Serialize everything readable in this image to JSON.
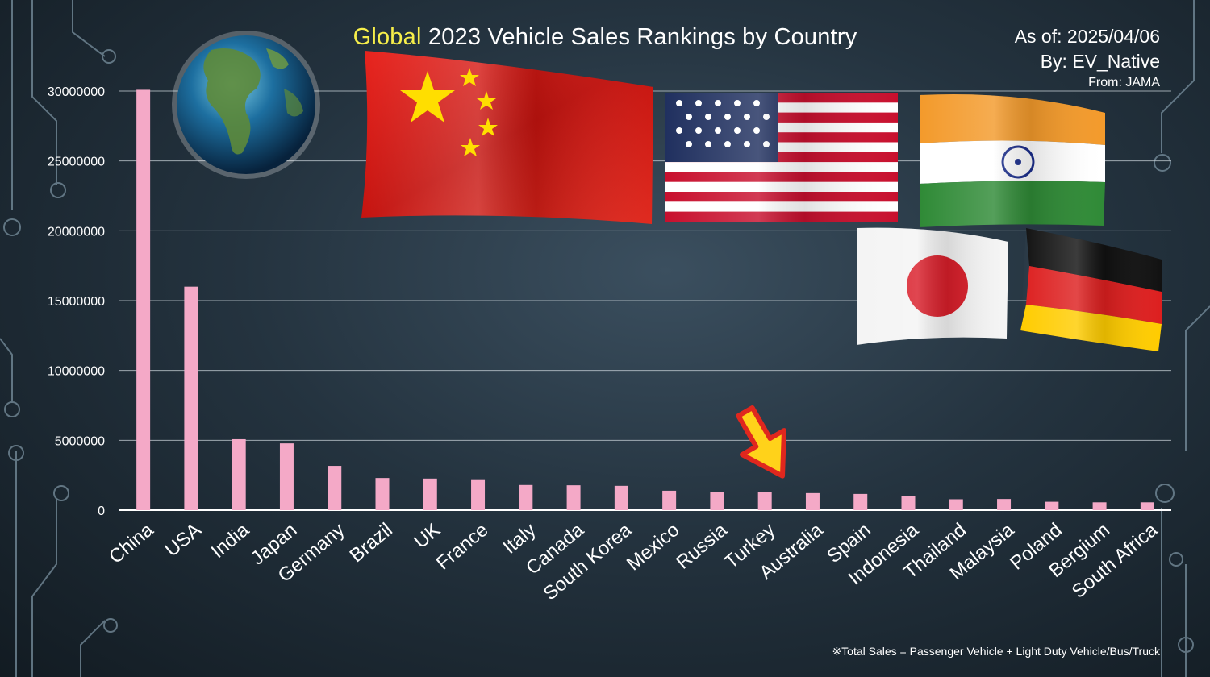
{
  "title": {
    "highlight": "Global",
    "rest": "2023 Vehicle Sales Rankings by Country"
  },
  "meta": {
    "as_of": "As of: 2025/04/06",
    "by": "By: EV_Native",
    "from": "From: JAMA"
  },
  "footnote": "※Total Sales = Passenger Vehicle + Light Duty Vehicle/Bus/Truck",
  "colors": {
    "bar": "#f4a9c7",
    "title_highlight": "#f6ee4a",
    "grid": "#c9d2d8",
    "arrow_fill": "#ffd21a",
    "arrow_stroke": "#e0271e"
  },
  "decorations": [
    "globe-image",
    "china-flag",
    "usa-flag",
    "india-flag",
    "japan-flag",
    "germany-flag",
    "arrow-pointer-icon"
  ],
  "chart_data": {
    "type": "bar",
    "title": "Global 2023 Vehicle Sales Rankings by Country",
    "xlabel": "",
    "ylabel": "",
    "ylim": [
      0,
      30000000
    ],
    "yticks": [
      0,
      5000000,
      10000000,
      15000000,
      20000000,
      25000000,
      30000000
    ],
    "grid": true,
    "categories": [
      "China",
      "USA",
      "India",
      "Japan",
      "Germany",
      "Brazil",
      "UK",
      "France",
      "Italy",
      "Canada",
      "South Korea",
      "Mexico",
      "Russia",
      "Turkey",
      "Australia",
      "Spain",
      "Indonesia",
      "Thailand",
      "Malaysia",
      "Poland",
      "Bergium",
      "South Africa"
    ],
    "values": [
      30090000,
      16000000,
      5080000,
      4780000,
      3170000,
      2300000,
      2260000,
      2210000,
      1800000,
      1780000,
      1740000,
      1390000,
      1300000,
      1290000,
      1220000,
      1160000,
      1010000,
      780000,
      800000,
      600000,
      560000,
      560000
    ],
    "highlighted_category": "Turkey"
  }
}
